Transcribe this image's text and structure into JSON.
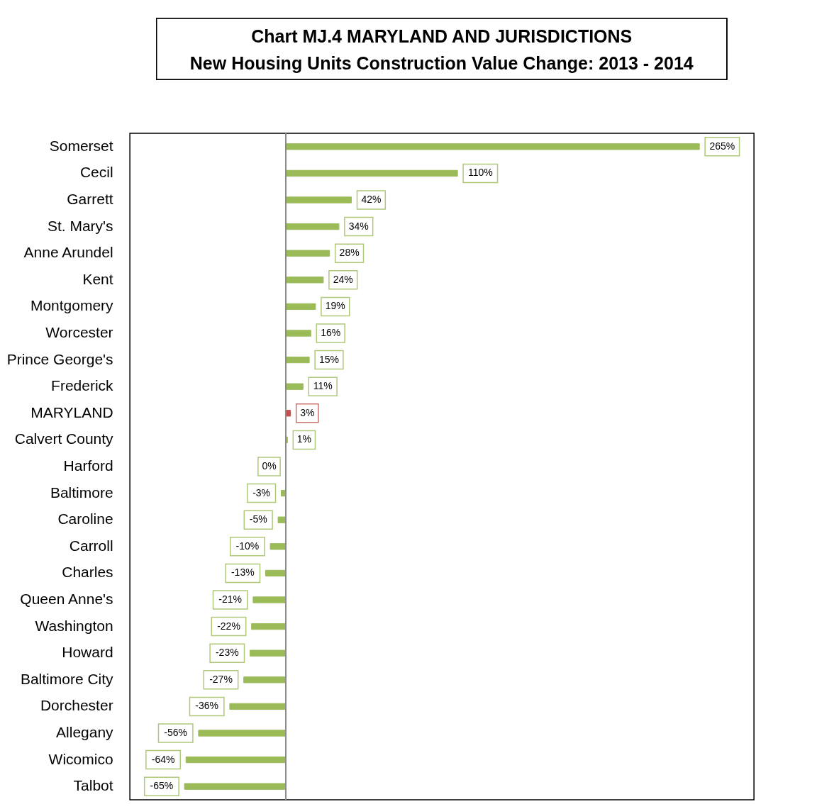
{
  "chart_data": {
    "type": "bar",
    "orientation": "horizontal",
    "title": "Chart MJ.4  MARYLAND AND JURISDICTIONS",
    "subtitle": "New Housing Units Construction Value Change: 2013 - 2014",
    "categories": [
      "Somerset",
      "Cecil",
      "Garrett",
      "St. Mary's",
      "Anne Arundel",
      "Kent",
      "Montgomery",
      "Worcester",
      "Prince George's",
      "Frederick",
      "MARYLAND",
      "Calvert County",
      "Harford",
      "Baltimore",
      "Caroline",
      "Carroll",
      "Charles",
      "Queen Anne's",
      "Washington",
      "Howard",
      "Baltimore City",
      "Dorchester",
      "Allegany",
      "Wicomico",
      "Talbot"
    ],
    "values": [
      265,
      110,
      42,
      34,
      28,
      24,
      19,
      16,
      15,
      11,
      3,
      1,
      0,
      -3,
      -5,
      -10,
      -13,
      -21,
      -22,
      -23,
      -27,
      -36,
      -56,
      -64,
      -65
    ],
    "value_labels": [
      "265%",
      "110%",
      "42%",
      "34%",
      "28%",
      "24%",
      "19%",
      "16%",
      "15%",
      "11%",
      "3%",
      "1%",
      "0%",
      "-3%",
      "-5%",
      "-10%",
      "-13%",
      "-21%",
      "-22%",
      "-23%",
      "-27%",
      "-36%",
      "-56%",
      "-64%",
      "-65%"
    ],
    "colors": [
      "#9bbb59",
      "#9bbb59",
      "#9bbb59",
      "#9bbb59",
      "#9bbb59",
      "#9bbb59",
      "#9bbb59",
      "#9bbb59",
      "#9bbb59",
      "#9bbb59",
      "#c0504d",
      "#9bbb59",
      "#9bbb59",
      "#9bbb59",
      "#9bbb59",
      "#9bbb59",
      "#9bbb59",
      "#9bbb59",
      "#9bbb59",
      "#9bbb59",
      "#9bbb59",
      "#9bbb59",
      "#9bbb59",
      "#9bbb59",
      "#9bbb59"
    ],
    "tick_labels": "y"
  }
}
